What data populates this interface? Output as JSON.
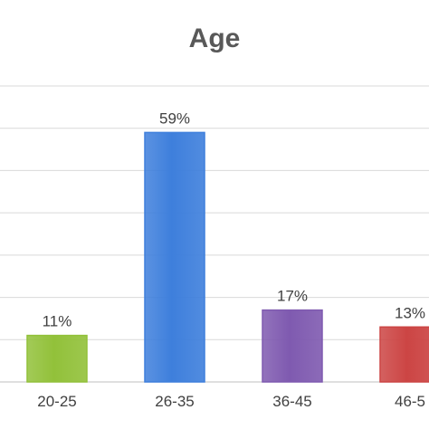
{
  "chart_data": {
    "type": "bar",
    "title": "Age",
    "xlabel": "",
    "ylabel": "",
    "categories": [
      "20-25",
      "26-35",
      "36-45",
      "46-5"
    ],
    "values": [
      11,
      59,
      17,
      13
    ],
    "data_labels": [
      "11%",
      "59%",
      "17%",
      "13%"
    ],
    "unit": "%",
    "ylim": [
      0,
      70
    ],
    "grid": true,
    "legend": "none",
    "colors": [
      "#92c13a",
      "#3e7fdc",
      "#7f5ab0",
      "#cc4544"
    ]
  }
}
